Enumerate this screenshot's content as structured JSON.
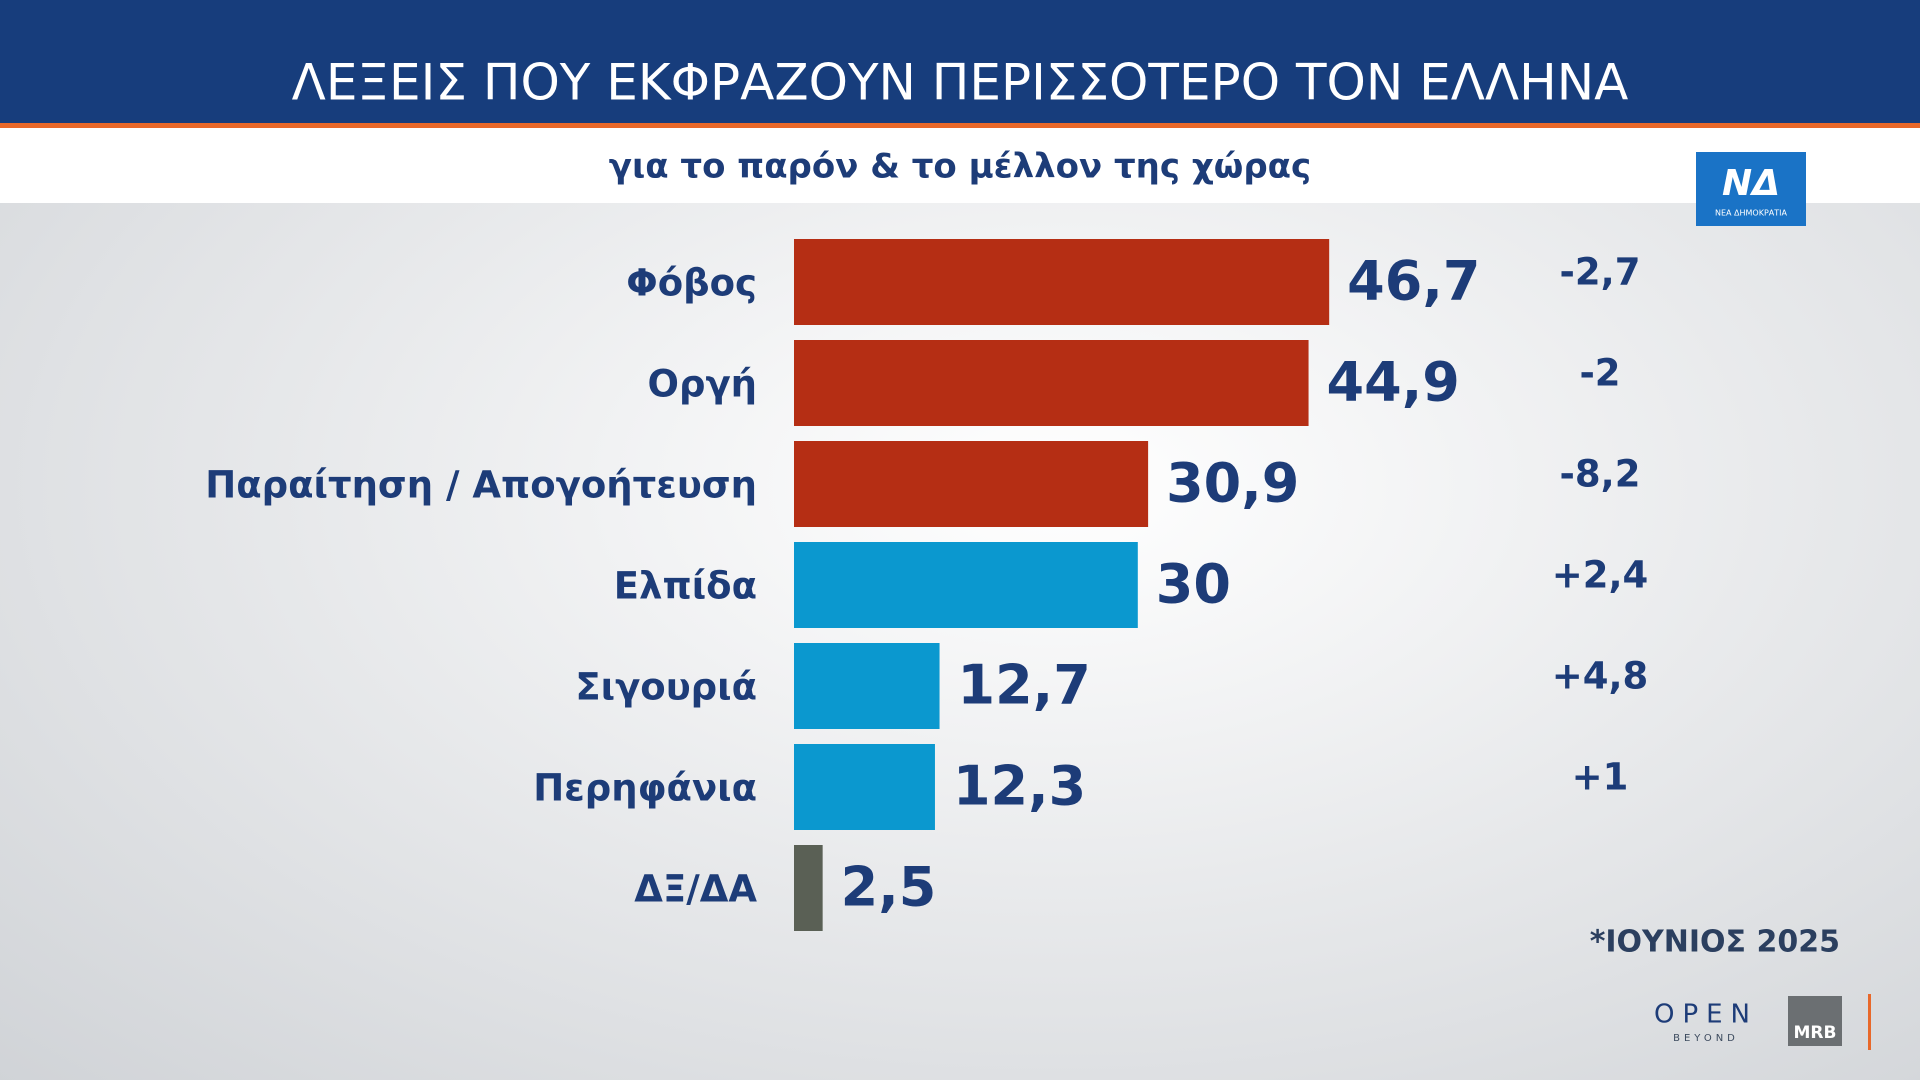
{
  "chart_data": {
    "type": "bar",
    "orientation": "horizontal",
    "title": "ΛΕΞΕΙΣ ΠΟΥ ΕΚΦΡΑΖΟΥΝ ΠΕΡΙΣΣΟΤΕΡΟ ΤΟΝ ΕΛΛΗΝΑ",
    "subtitle": "για το παρόν & το μέλλον της χώρας",
    "categories": [
      "Φόβος",
      "Οργή",
      "Παραίτηση / Απογοήτευση",
      "Ελπίδα",
      "Σιγουριά",
      "Περηφάνια",
      "ΔΞ/ΔΑ"
    ],
    "values": [
      46.7,
      44.9,
      30.9,
      30,
      12.7,
      12.3,
      2.5
    ],
    "value_labels": [
      "46,7",
      "44,9",
      "30,9",
      "30",
      "12,7",
      "12,3",
      "2,5"
    ],
    "colors": [
      "#b52e14",
      "#b52e14",
      "#b52e14",
      "#0b98cf",
      "#0b98cf",
      "#0b98cf",
      "#5a6055"
    ],
    "changes": {
      "values": [
        -2.7,
        -2,
        -8.2,
        2.4,
        4.8,
        1,
        null
      ],
      "value_labels": [
        "-2,7",
        "-2",
        "-8,2",
        "+2,4",
        "+4,8",
        "+1",
        null
      ]
    },
    "footnote": "*ΙΟΥΝΙΟΣ 2025"
  },
  "logos": {
    "party": "ΝΔ",
    "party_name": "ΝΕΑ ΔΗΜΟΚΡΑΤΙΑ",
    "channel": "OPEN",
    "channel_sub": "BEYOND",
    "pollster": "MRB"
  }
}
